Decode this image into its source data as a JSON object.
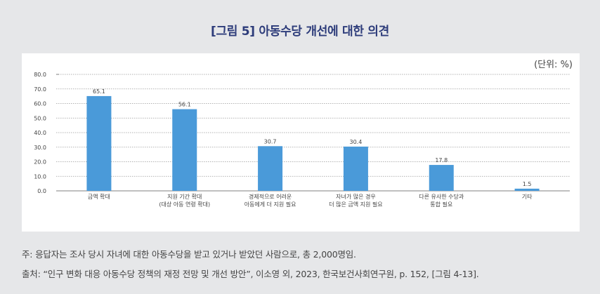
{
  "title": "[그림 5] 아동수당 개선에 대한 의견",
  "unit_label": "(단위: %)",
  "footnotes": {
    "note": "주: 응답자는 조사 당시 자녀에 대한 아동수당을 받고 있거나 받았던 사람으로, 총 2,000명임.",
    "source": "출처: “인구 변화 대응 아동수당 정책의 재정 전망 및 개선 방안”, 이소영 외, 2023, 한국보건사회연구원,  p. 152, [그림 4-13]."
  },
  "colors": {
    "bar": "#4a9ad9",
    "title": "#2d3c7a",
    "grid": "#9a9a9a",
    "background": "#e6e7e9"
  },
  "chart_data": {
    "type": "bar",
    "title": "[그림 5] 아동수당 개선에 대한 의견",
    "xlabel": "",
    "ylabel": "",
    "ylim": [
      0,
      80
    ],
    "y_ticks": [
      "0.0",
      "10.0",
      "20.0",
      "30.0",
      "40.0",
      "50.0",
      "60.0",
      "70.0",
      "80.0"
    ],
    "grid": true,
    "categories": [
      [
        "금액 확대"
      ],
      [
        "지원 기간 확대",
        "(대상 아동 연령 확대)"
      ],
      [
        "경제적으로 어려운",
        "아동에게 더 지원 필요"
      ],
      [
        "자녀가 많은 경우",
        "더 많은 금액 지원 필요"
      ],
      [
        "다른 유사한 수당과",
        "통합 필요"
      ],
      [
        "기타"
      ]
    ],
    "values": [
      65.1,
      56.1,
      30.7,
      30.4,
      17.8,
      1.5
    ],
    "value_labels": [
      "65.1",
      "56.1",
      "30.7",
      "30.4",
      "17.8",
      "1.5"
    ]
  }
}
